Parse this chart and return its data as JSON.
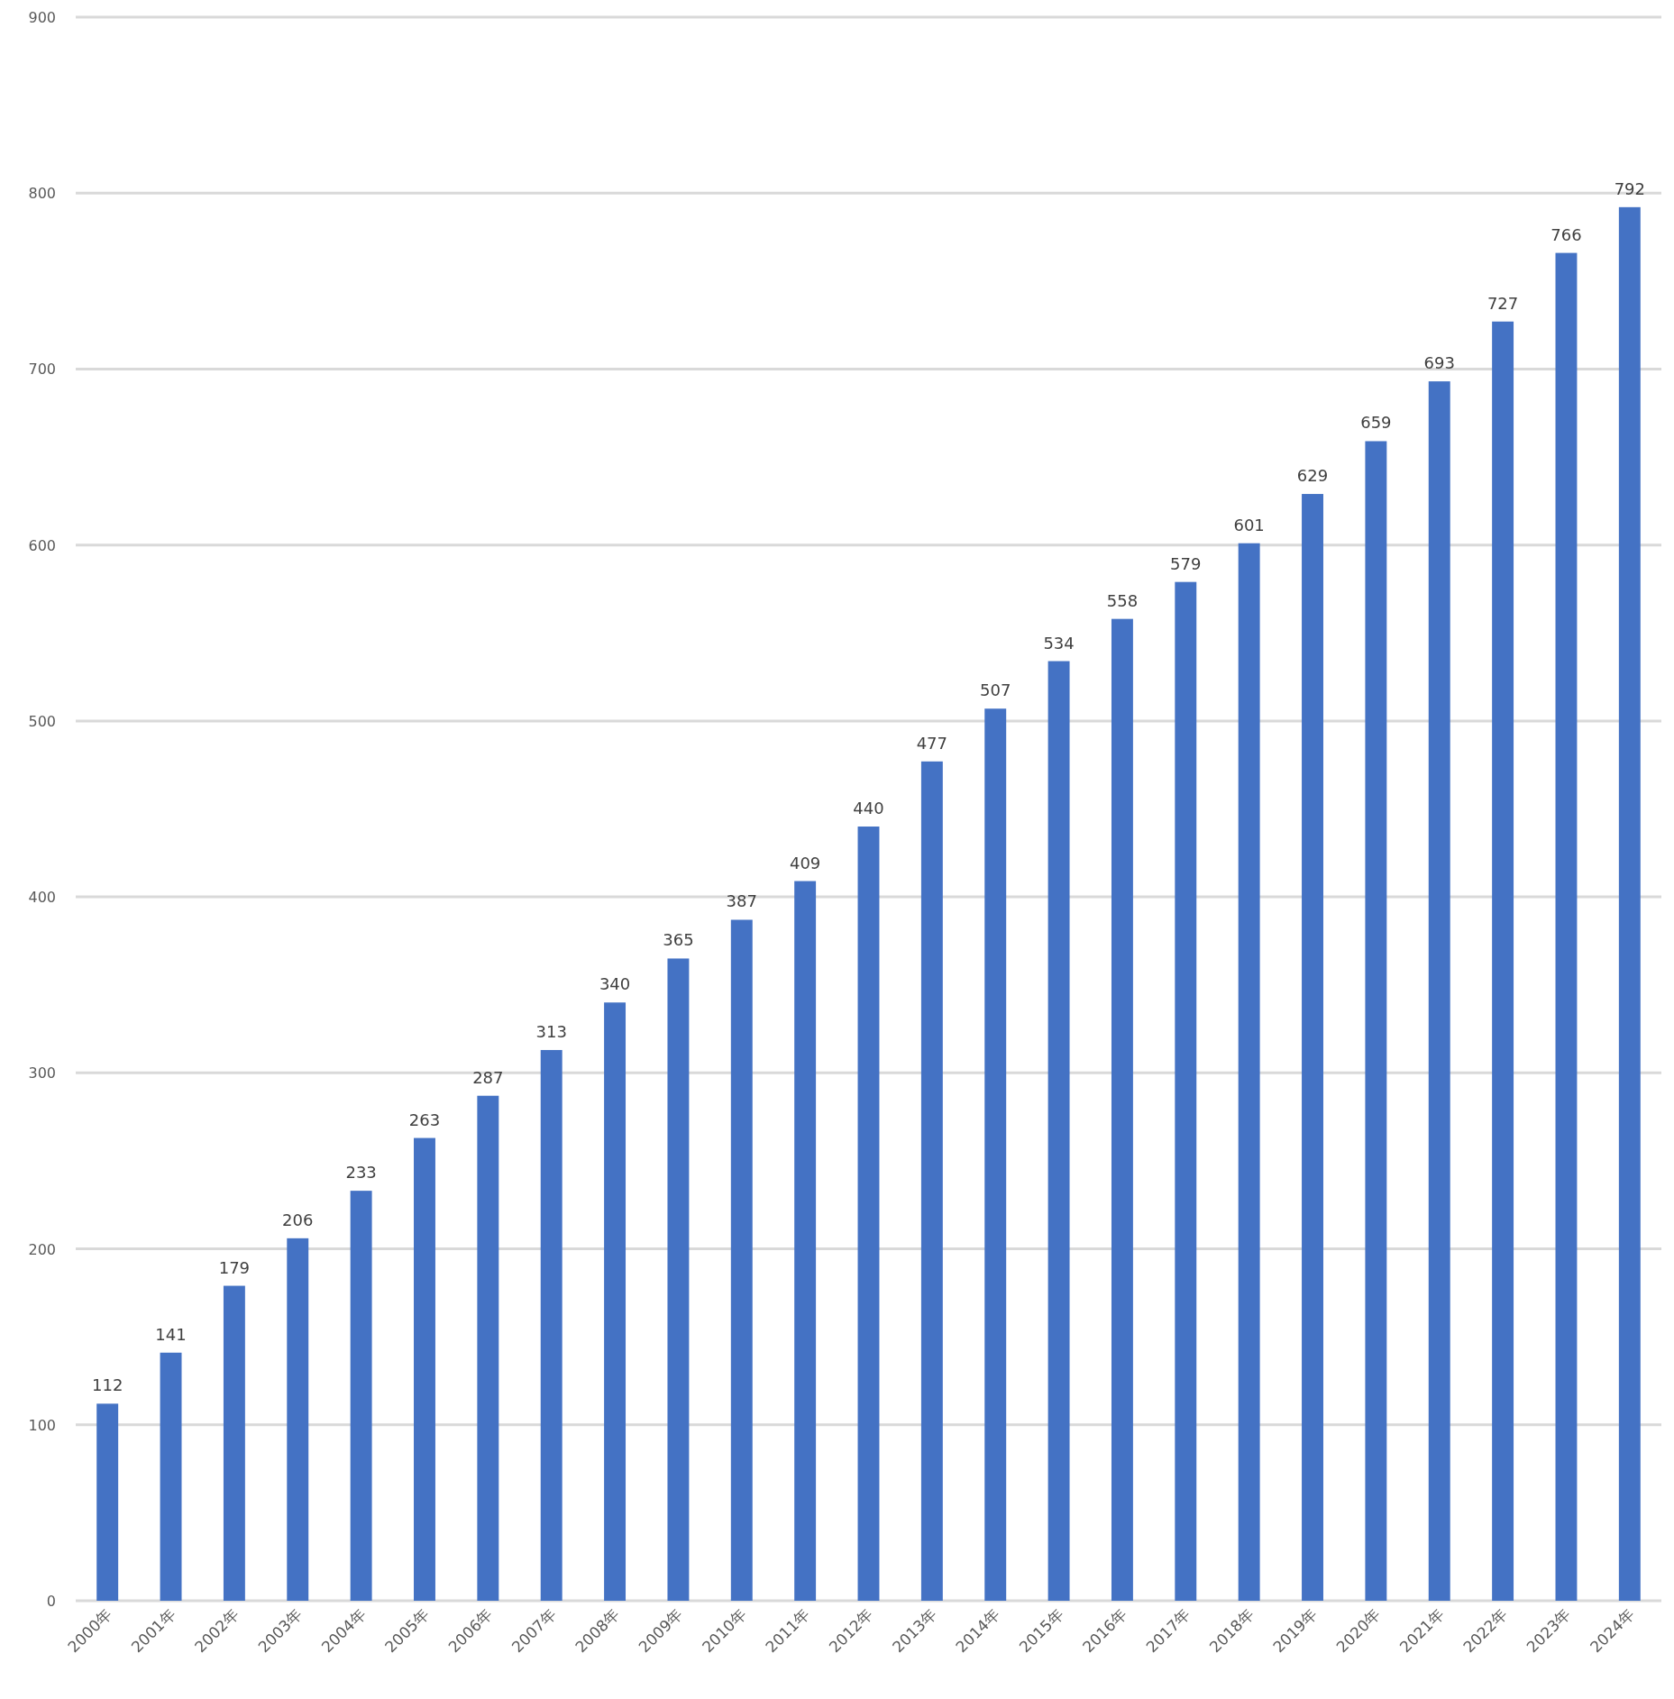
{
  "chart_data": {
    "type": "bar",
    "categories": [
      "2000年",
      "2001年",
      "2002年",
      "2003年",
      "2004年",
      "2005年",
      "2006年",
      "2007年",
      "2008年",
      "2009年",
      "2010年",
      "2011年",
      "2012年",
      "2013年",
      "2014年",
      "2015年",
      "2016年",
      "2017年",
      "2018年",
      "2019年",
      "2020年",
      "2021年",
      "2022年",
      "2023年",
      "2024年"
    ],
    "values": [
      112,
      141,
      179,
      206,
      233,
      263,
      287,
      313,
      340,
      365,
      387,
      409,
      440,
      477,
      507,
      534,
      558,
      579,
      601,
      629,
      659,
      693,
      727,
      766,
      792
    ],
    "color": "#4472c4",
    "ylim": [
      0,
      900
    ],
    "yticks": [
      0,
      100,
      200,
      300,
      400,
      500,
      600,
      700,
      800,
      900
    ],
    "grid": "y",
    "data_labels": true
  }
}
